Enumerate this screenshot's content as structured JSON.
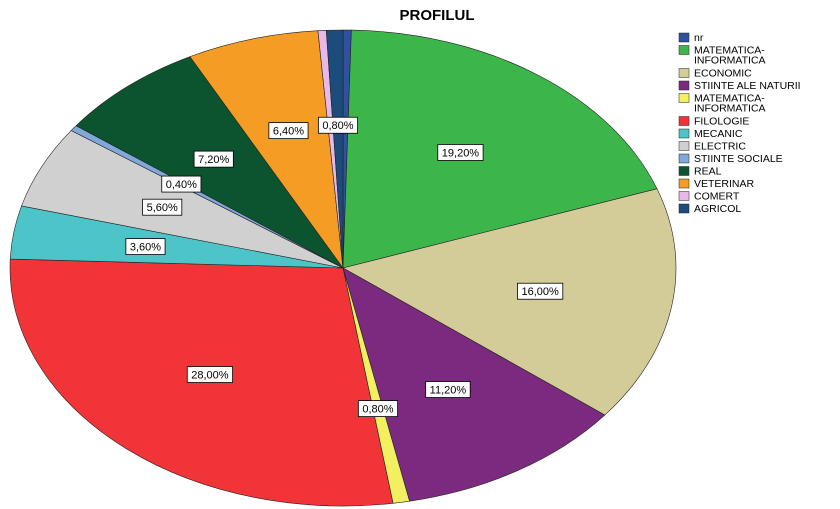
{
  "chart_data": {
    "type": "pie",
    "title": "PROFILUL",
    "categories": [
      "nr",
      "MATEMATICA-INFORMATICA",
      "ECONOMIC",
      "STIINTE ALE NATURII",
      "MATEMATICA-INFORMATICA",
      "FILOLOGIE",
      "MECANIC",
      "ELECTRIC",
      "STIINTE SOCIALE",
      "REAL",
      "VETERINAR",
      "COMERT",
      "AGRICOL"
    ],
    "values": [
      0.4,
      19.2,
      16,
      11.2,
      0.8,
      28,
      3.6,
      5.6,
      0.4,
      7.2,
      6.4,
      0.4,
      0.8
    ],
    "value_labels": [
      null,
      "19,20%",
      "16,00%",
      "11,20%",
      "0,80%",
      "28,00%",
      "3,60%",
      "5,60%",
      "0,40%",
      "7,20%",
      "6,40%",
      null,
      "0,80%"
    ],
    "colors": [
      "#3050a0",
      "#3cb64a",
      "#d4cc98",
      "#7b2a80",
      "#f2f060",
      "#f03438",
      "#4cc4c8",
      "#d0d0d0",
      "#80a8d8",
      "#0c5430",
      "#f59c24",
      "#e8b8e8",
      "#1c4c7c"
    ]
  }
}
